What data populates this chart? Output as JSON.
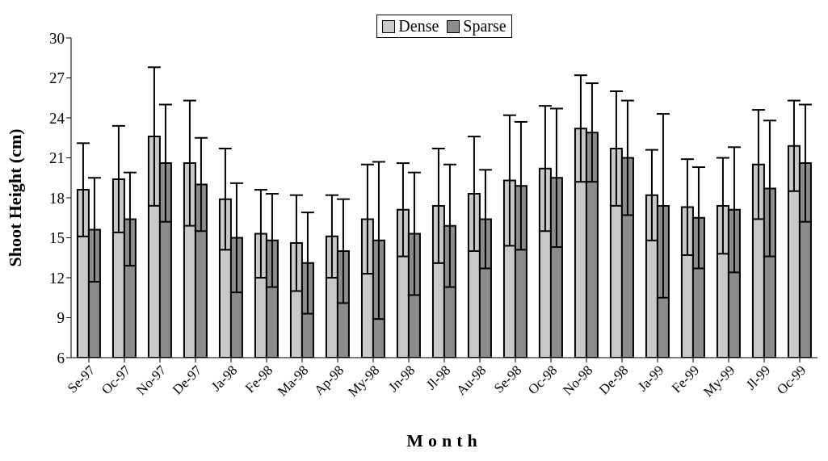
{
  "chart_data": {
    "type": "bar",
    "xlabel": "Month",
    "ylabel": "Shoot Height (cm)",
    "categories": [
      "Se-97",
      "Oc-97",
      "No-97",
      "De-97",
      "Ja-98",
      "Fe-98",
      "Ma-98",
      "Ap-98",
      "My-98",
      "Jn-98",
      "Jl-98",
      "Au-98",
      "Se-98",
      "Oc-98",
      "No-98",
      "De-98",
      "Ja-99",
      "Fe-99",
      "My-99",
      "Jl-99",
      "Oc-99"
    ],
    "series": [
      {
        "name": "Dense",
        "color": "#c8c8c8",
        "values": [
          18.6,
          19.4,
          22.6,
          20.6,
          17.9,
          15.3,
          14.6,
          15.1,
          16.4,
          17.1,
          17.4,
          18.3,
          19.3,
          20.2,
          23.2,
          21.7,
          18.2,
          17.3,
          17.4,
          20.5,
          21.9
        ],
        "errors": [
          3.5,
          4.0,
          5.2,
          4.7,
          3.8,
          3.3,
          3.6,
          3.1,
          4.1,
          3.5,
          4.3,
          4.3,
          4.9,
          4.7,
          4.0,
          4.3,
          3.4,
          3.6,
          3.6,
          4.1,
          3.4
        ]
      },
      {
        "name": "Sparse",
        "color": "#8c8c8c",
        "values": [
          15.6,
          16.4,
          20.6,
          19.0,
          15.0,
          14.8,
          13.1,
          14.0,
          14.8,
          15.3,
          15.9,
          16.4,
          18.9,
          19.5,
          22.9,
          21.0,
          17.4,
          16.5,
          17.1,
          18.7,
          20.6
        ],
        "errors": [
          3.9,
          3.5,
          4.4,
          3.5,
          4.1,
          3.5,
          3.8,
          3.9,
          5.9,
          4.6,
          4.6,
          3.7,
          4.8,
          5.2,
          3.7,
          4.3,
          6.9,
          3.8,
          4.7,
          5.1,
          4.4
        ]
      }
    ],
    "ylim": [
      6,
      30
    ],
    "yticks": [
      6,
      9,
      12,
      15,
      18,
      21,
      24,
      27,
      30
    ],
    "grid": false,
    "legend": "top"
  }
}
